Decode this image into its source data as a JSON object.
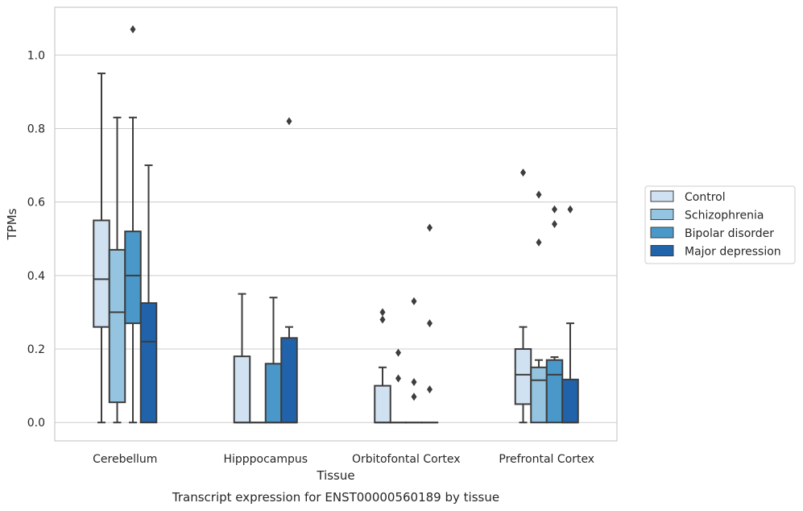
{
  "chart_data": {
    "type": "box",
    "title": "Transcript expression for ENST00000560189 by tissue",
    "xlabel": "Tissue",
    "ylabel": "TPMs",
    "ylim": [
      -0.05,
      1.13
    ],
    "yticks": [
      0.0,
      0.2,
      0.4,
      0.6,
      0.8,
      1.0
    ],
    "ytick_labels": [
      "0.0",
      "0.2",
      "0.4",
      "0.6",
      "0.8",
      "1.0"
    ],
    "grid": true,
    "legend_position": "right",
    "categories": [
      "Cerebellum",
      "Hipppocampus",
      "Orbitofontal Cortex",
      "Prefrontal Cortex"
    ],
    "series": [
      {
        "name": "Control",
        "color": "#d0e1f2",
        "boxes": [
          {
            "whislo": 0.0,
            "q1": 0.26,
            "med": 0.39,
            "q3": 0.55,
            "whishi": 0.95,
            "fliers": []
          },
          {
            "whislo": 0.0,
            "q1": 0.0,
            "med": 0.0,
            "q3": 0.18,
            "whishi": 0.35,
            "fliers": []
          },
          {
            "whislo": 0.0,
            "q1": 0.0,
            "med": 0.0,
            "q3": 0.1,
            "whishi": 0.15,
            "fliers": [
              0.28,
              0.3
            ]
          },
          {
            "whislo": 0.0,
            "q1": 0.05,
            "med": 0.13,
            "q3": 0.2,
            "whishi": 0.26,
            "fliers": [
              0.68
            ]
          }
        ]
      },
      {
        "name": "Schizophrenia",
        "color": "#94c4df",
        "boxes": [
          {
            "whislo": 0.0,
            "q1": 0.055,
            "med": 0.3,
            "q3": 0.47,
            "whishi": 0.83,
            "fliers": []
          },
          {
            "whislo": 0.0,
            "q1": 0.0,
            "med": 0.0,
            "q3": 0.0,
            "whishi": 0.0,
            "fliers": []
          },
          {
            "whislo": 0.0,
            "q1": 0.0,
            "med": 0.0,
            "q3": 0.0,
            "whishi": 0.0,
            "fliers": [
              0.12,
              0.19
            ]
          },
          {
            "whislo": 0.0,
            "q1": 0.0,
            "med": 0.115,
            "q3": 0.15,
            "whishi": 0.17,
            "fliers": [
              0.49,
              0.62
            ]
          }
        ]
      },
      {
        "name": "Bipolar disorder",
        "color": "#4a98c9",
        "boxes": [
          {
            "whislo": 0.0,
            "q1": 0.27,
            "med": 0.4,
            "q3": 0.52,
            "whishi": 0.83,
            "fliers": [
              1.07
            ]
          },
          {
            "whislo": 0.0,
            "q1": 0.0,
            "med": 0.0,
            "q3": 0.16,
            "whishi": 0.34,
            "fliers": []
          },
          {
            "whislo": 0.0,
            "q1": 0.0,
            "med": 0.0,
            "q3": 0.0,
            "whishi": 0.0,
            "fliers": [
              0.07,
              0.11,
              0.33
            ]
          },
          {
            "whislo": 0.0,
            "q1": 0.0,
            "med": 0.13,
            "q3": 0.17,
            "whishi": 0.178,
            "fliers": [
              0.54,
              0.58
            ]
          }
        ]
      },
      {
        "name": "Major depression",
        "color": "#2163aa",
        "boxes": [
          {
            "whislo": 0.0,
            "q1": 0.0,
            "med": 0.22,
            "q3": 0.325,
            "whishi": 0.7,
            "fliers": []
          },
          {
            "whislo": 0.0,
            "q1": 0.0,
            "med": 0.0,
            "q3": 0.23,
            "whishi": 0.26,
            "fliers": [
              0.82
            ]
          },
          {
            "whislo": 0.0,
            "q1": 0.0,
            "med": 0.0,
            "q3": 0.0,
            "whishi": 0.0,
            "fliers": [
              0.09,
              0.27,
              0.53
            ]
          },
          {
            "whislo": 0.0,
            "q1": 0.0,
            "med": 0.0,
            "q3": 0.117,
            "whishi": 0.27,
            "fliers": [
              0.58
            ]
          }
        ]
      }
    ]
  }
}
